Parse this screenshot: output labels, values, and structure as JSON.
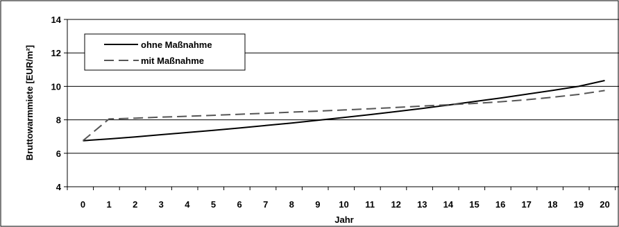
{
  "chart_data": {
    "type": "line",
    "xlabel": "Jahr",
    "ylabel": "Bruttowarmmiete [EUR/m²]",
    "x": [
      0,
      1,
      2,
      3,
      4,
      5,
      6,
      7,
      8,
      9,
      10,
      11,
      12,
      13,
      14,
      15,
      16,
      17,
      18,
      19,
      20
    ],
    "xlim": [
      0,
      20
    ],
    "ylim": [
      4,
      14
    ],
    "yticks": [
      4,
      6,
      8,
      10,
      12,
      14
    ],
    "grid": "horizontal",
    "legend": "top-left",
    "series": [
      {
        "name": "ohne Maßnahme",
        "style": "solid",
        "color": "#000000",
        "values": [
          6.75,
          6.86,
          6.98,
          7.11,
          7.24,
          7.37,
          7.51,
          7.66,
          7.81,
          7.97,
          8.14,
          8.31,
          8.49,
          8.68,
          8.88,
          9.09,
          9.3,
          9.53,
          9.76,
          10.0,
          10.35
        ]
      },
      {
        "name": "mit Maßnahme",
        "style": "dashed",
        "color": "#555555",
        "values": [
          6.75,
          8.05,
          8.1,
          8.16,
          8.21,
          8.27,
          8.33,
          8.39,
          8.46,
          8.52,
          8.59,
          8.66,
          8.74,
          8.82,
          8.9,
          8.98,
          9.08,
          9.2,
          9.35,
          9.52,
          9.75
        ]
      }
    ]
  }
}
